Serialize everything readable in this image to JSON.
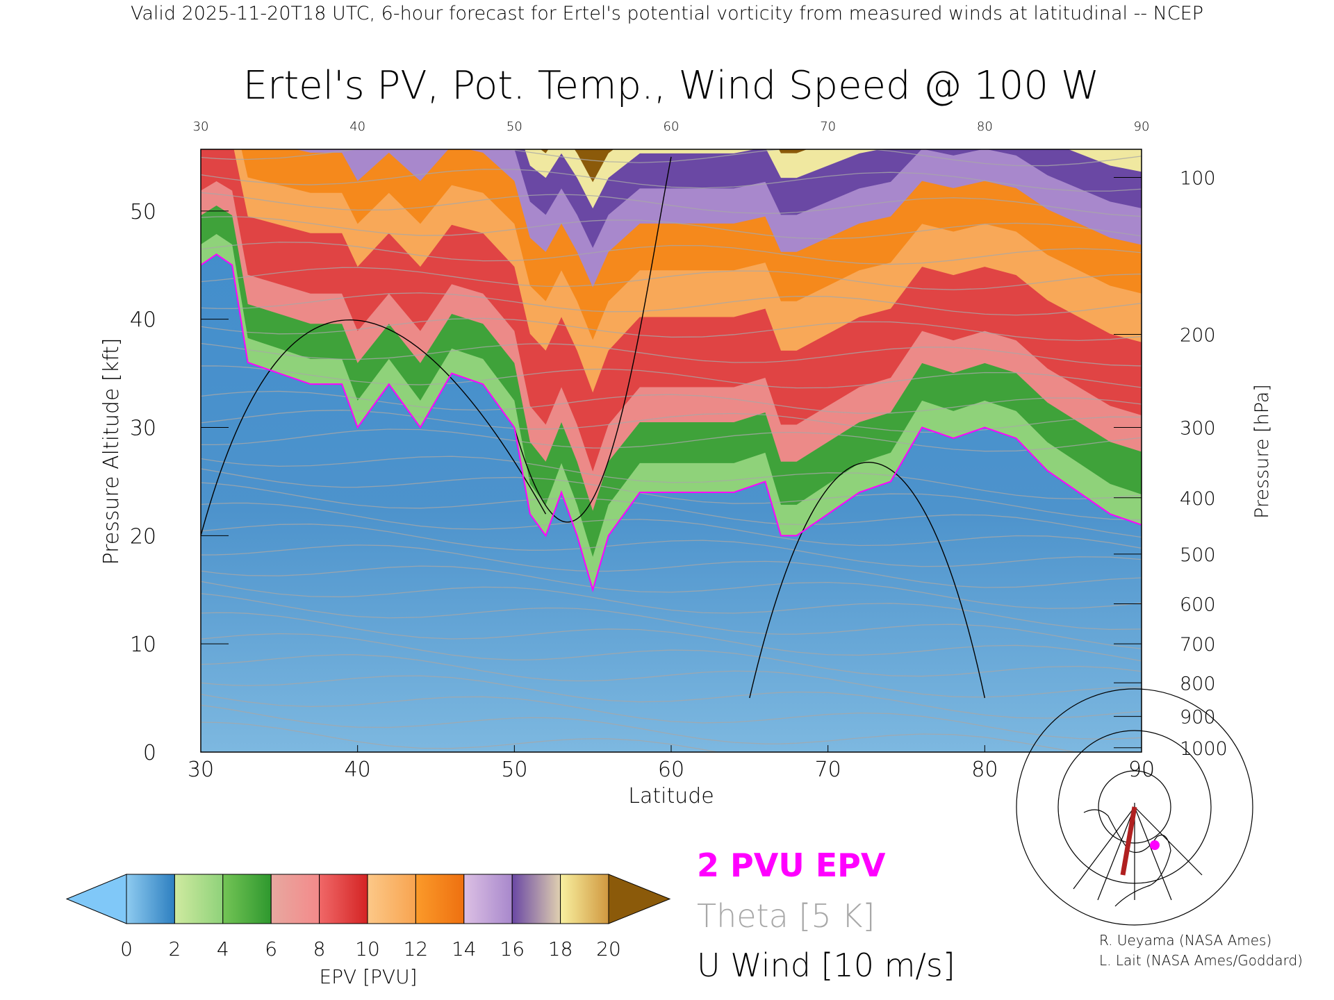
{
  "header": "Valid 2025-11-20T18 UTC, 6-hour forecast for Ertel's potential vorticity from measured winds at latitudinal -- NCEP",
  "chart_data": {
    "type": "heatmap",
    "title": "Ertel's PV, Pot. Temp., Wind Speed @ 100 W",
    "xlabel": "Latitude",
    "ylabel": "Pressure Altitude [kft]",
    "y2label": "Pressure [hPa]",
    "xlim": [
      30,
      90
    ],
    "ylim": [
      0,
      55.7
    ],
    "x_ticks": [
      "30",
      "40",
      "50",
      "60",
      "70",
      "80",
      "90"
    ],
    "y_ticks": [
      "0",
      "10",
      "20",
      "30",
      "40",
      "50"
    ],
    "pressure_ticks": [
      {
        "label": "100",
        "kft": 53.1
      },
      {
        "label": "200",
        "kft": 38.6
      },
      {
        "label": "300",
        "kft": 30.0
      },
      {
        "label": "400",
        "kft": 23.5
      },
      {
        "label": "500",
        "kft": 18.3
      },
      {
        "label": "600",
        "kft": 13.7
      },
      {
        "label": "700",
        "kft": 10.0
      },
      {
        "label": "800",
        "kft": 6.4
      },
      {
        "label": "900",
        "kft": 3.3
      },
      {
        "label": "1000",
        "kft": 0.4
      }
    ],
    "pv2_tropopause": {
      "lat": [
        30,
        31,
        32,
        33,
        35,
        37,
        39,
        40,
        42,
        44,
        46,
        48,
        50,
        51,
        52,
        53,
        54,
        55,
        56,
        58,
        60,
        62,
        64,
        66,
        67,
        68,
        70,
        72,
        74,
        76,
        78,
        80,
        82,
        84,
        86,
        88,
        90
      ],
      "kft": [
        45,
        46,
        45,
        36,
        35,
        34,
        34,
        30,
        34,
        30,
        35,
        34,
        30,
        22,
        20,
        24,
        20,
        15,
        20,
        24,
        24,
        24,
        24,
        25,
        20,
        20,
        22,
        24,
        25,
        30,
        29,
        30,
        29,
        26,
        24,
        22,
        21
      ]
    },
    "colorbar": {
      "label": "EPV [PVU]",
      "ticks": [
        "0",
        "2",
        "4",
        "6",
        "8",
        "10",
        "12",
        "14",
        "16",
        "18",
        "20"
      ],
      "colors": [
        [
          "#8ecbf0",
          "#2d7fc0"
        ],
        [
          "#cfeaa0",
          "#8fd27a"
        ],
        [
          "#74c456",
          "#2e982e"
        ],
        [
          "#e7a8a0",
          "#f48a8a"
        ],
        [
          "#f06868",
          "#d42424"
        ],
        [
          "#fcc888",
          "#f8a450"
        ],
        [
          "#fb9a2a",
          "#ee7010"
        ],
        [
          "#dcc0e4",
          "#a888cc"
        ],
        [
          "#6a48a4",
          "#e0d0b0"
        ],
        [
          "#f8f0a0",
          "#d09840"
        ]
      ],
      "under_color": "#80c8f8",
      "over_color": "#8b5a0a"
    },
    "legend": [
      {
        "label": "2 PVU EPV",
        "color": "#ff00ff"
      },
      {
        "label": "Theta [5 K]",
        "color": "#a8a8a8"
      },
      {
        "label": "U Wind [10 m/s]",
        "color": "#000000"
      }
    ]
  },
  "credits": [
    "R. Ueyama (NASA Ames)",
    "L. Lait (NASA Ames/Goddard)"
  ]
}
